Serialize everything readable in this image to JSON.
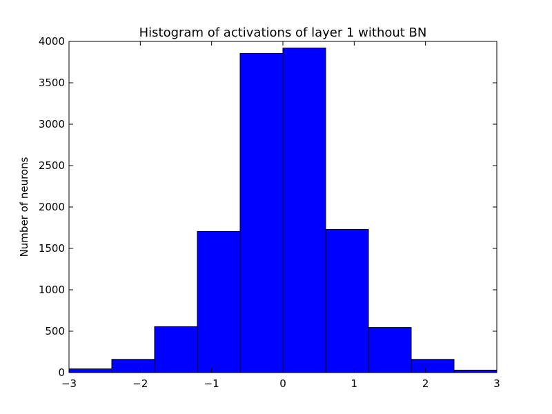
{
  "chart_data": {
    "type": "bar",
    "title": "Histogram of activations of layer 1  without BN",
    "xlabel": "",
    "ylabel": "Number of neurons",
    "xlim": [
      -3,
      3
    ],
    "ylim": [
      0,
      4000
    ],
    "grid": false,
    "bar_color": "#0000ff",
    "bin_edges": [
      -3.0,
      -2.4,
      -1.8,
      -1.2,
      -0.6,
      0.0,
      0.6,
      1.2,
      1.8,
      2.4,
      3.0
    ],
    "values": [
      45,
      160,
      555,
      1705,
      3855,
      3920,
      1730,
      545,
      160,
      30
    ],
    "x_ticks": [
      -3,
      -2,
      -1,
      0,
      1,
      2,
      3
    ],
    "x_tick_labels": [
      "−3",
      "−2",
      "−1",
      "0",
      "1",
      "2",
      "3"
    ],
    "y_ticks": [
      0,
      500,
      1000,
      1500,
      2000,
      2500,
      3000,
      3500,
      4000
    ],
    "y_tick_labels": [
      "0",
      "500",
      "1000",
      "1500",
      "2000",
      "2500",
      "3000",
      "3500",
      "4000"
    ]
  }
}
